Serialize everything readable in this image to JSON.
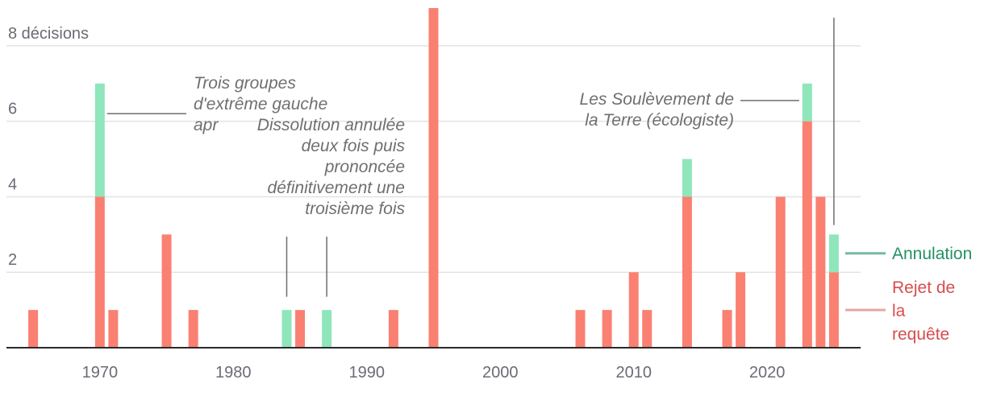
{
  "chart_data": {
    "type": "bar",
    "stacked": true,
    "xlim": [
      1963,
      2027
    ],
    "ylim": [
      0,
      9
    ],
    "x_ticks": [
      1970,
      1980,
      1990,
      2000,
      2010,
      2020
    ],
    "y_ticks": [
      {
        "value": 2,
        "label": "2"
      },
      {
        "value": 4,
        "label": "4"
      },
      {
        "value": 6,
        "label": "6"
      },
      {
        "value": 8,
        "label": "8 décisions"
      }
    ],
    "grid": true,
    "series": [
      {
        "name": "Rejet de la requête",
        "color": "#fa8072",
        "label_color": "#d94c4c",
        "line_color": "#e5a7a3",
        "values": [
          {
            "x": 1965,
            "y": 1
          },
          {
            "x": 1970,
            "y": 4
          },
          {
            "x": 1971,
            "y": 1
          },
          {
            "x": 1975,
            "y": 3
          },
          {
            "x": 1977,
            "y": 1
          },
          {
            "x": 1985,
            "y": 1
          },
          {
            "x": 1992,
            "y": 1
          },
          {
            "x": 1995,
            "y": 9
          },
          {
            "x": 2006,
            "y": 1
          },
          {
            "x": 2008,
            "y": 1
          },
          {
            "x": 2010,
            "y": 2
          },
          {
            "x": 2011,
            "y": 1
          },
          {
            "x": 2014,
            "y": 4
          },
          {
            "x": 2017,
            "y": 1
          },
          {
            "x": 2018,
            "y": 2
          },
          {
            "x": 2021,
            "y": 4
          },
          {
            "x": 2023,
            "y": 6
          },
          {
            "x": 2024,
            "y": 4
          },
          {
            "x": 2025,
            "y": 2
          }
        ]
      },
      {
        "name": "Annulation",
        "color": "#8fe6bb",
        "label_color": "#249164",
        "line_color": "#76b8a6",
        "values": [
          {
            "x": 1970,
            "y": 3
          },
          {
            "x": 1984,
            "y": 1
          },
          {
            "x": 1987,
            "y": 1
          },
          {
            "x": 2014,
            "y": 1
          },
          {
            "x": 2023,
            "y": 1
          },
          {
            "x": 2025,
            "y": 1
          }
        ]
      }
    ],
    "annotations": [
      {
        "text": [
          "Trois groupes",
          "d'extrême gauche",
          "apr"
        ],
        "target_x": 1970,
        "align": "left"
      },
      {
        "text": [
          "Dissolution annulée",
          "deux fois puis",
          "prononcée",
          "définitivement une",
          "troisième fois"
        ],
        "target_x": [
          1984,
          1987
        ],
        "align": "right"
      },
      {
        "text": [
          "Les Soulèvement de",
          "la Terre (écologiste)"
        ],
        "target_x": 2023,
        "align": "right"
      }
    ],
    "legend": [
      {
        "series": "Annulation",
        "lines": [
          "Annulation"
        ]
      },
      {
        "series": "Rejet de la requête",
        "lines": [
          "Rejet de",
          "la",
          "requête"
        ]
      }
    ]
  }
}
